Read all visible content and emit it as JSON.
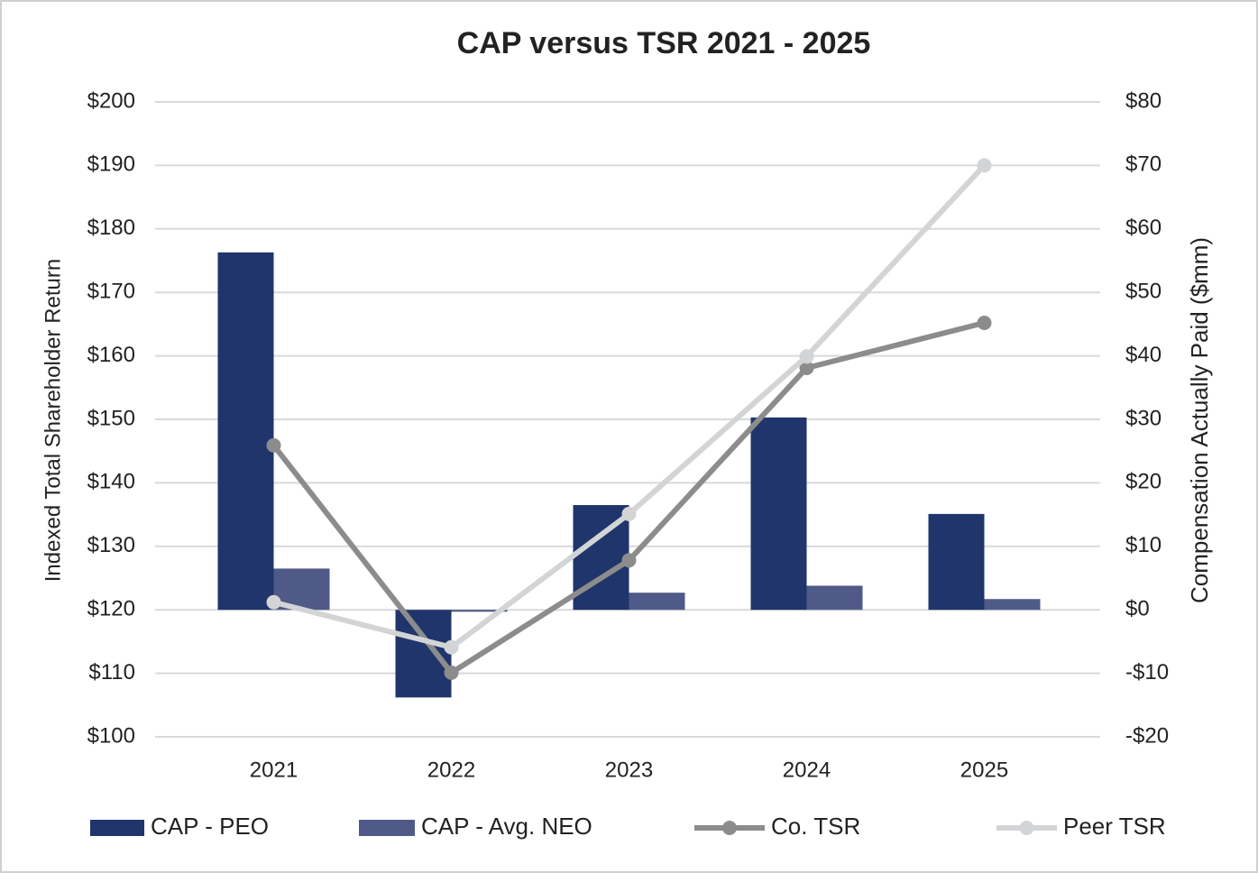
{
  "chart_data": {
    "type": "combo",
    "title": "CAP versus TSR 2021 - 2025",
    "y_label": "Indexed Total Shareholder Return",
    "y2_label": "Compensation Actually Paid ($mm)",
    "categories": [
      "2021",
      "2022",
      "2023",
      "2024",
      "2025"
    ],
    "series": [
      {
        "name": "CAP - PEO",
        "type": "bar",
        "axis": "y2",
        "color": "#1f356b",
        "values": [
          56.3,
          -13.8,
          16.5,
          30.3,
          15.1
        ]
      },
      {
        "name": "CAP - Avg. NEO",
        "type": "bar",
        "axis": "y2",
        "color": "#4f5a88",
        "values": [
          6.5,
          -0.3,
          2.7,
          3.8,
          1.7
        ]
      },
      {
        "name": "Co. TSR",
        "type": "line",
        "axis": "y",
        "color": "#8c8c8c",
        "values": [
          145.9,
          110.1,
          127.8,
          158.1,
          165.2
        ]
      },
      {
        "name": "Peer TSR",
        "type": "line",
        "axis": "y",
        "color": "#d3d4d6",
        "values": [
          121.2,
          114.1,
          135.1,
          159.9,
          190
        ]
      }
    ],
    "ylim": [
      100,
      200
    ],
    "yticks": [
      {
        "value": 100,
        "label": "$100"
      },
      {
        "value": 110,
        "label": "$110"
      },
      {
        "value": 120,
        "label": "$120"
      },
      {
        "value": 130,
        "label": "$130"
      },
      {
        "value": 140,
        "label": "$140"
      },
      {
        "value": 150,
        "label": "$150"
      },
      {
        "value": 160,
        "label": "$160"
      },
      {
        "value": 170,
        "label": "$170"
      },
      {
        "value": 180,
        "label": "$180"
      },
      {
        "value": 190,
        "label": "$190"
      },
      {
        "value": 200,
        "label": "$200"
      }
    ],
    "y2lim": [
      -20,
      80
    ],
    "y2ticks": [
      {
        "value": -20,
        "label": "-$20"
      },
      {
        "value": -10,
        "label": "-$10"
      },
      {
        "value": 0,
        "label": "$0"
      },
      {
        "value": 10,
        "label": "$10"
      },
      {
        "value": 20,
        "label": "$20"
      },
      {
        "value": 30,
        "label": "$30"
      },
      {
        "value": 40,
        "label": "$40"
      },
      {
        "value": 50,
        "label": "$50"
      },
      {
        "value": 60,
        "label": "$60"
      },
      {
        "value": 70,
        "label": "$70"
      },
      {
        "value": 80,
        "label": "$80"
      }
    ],
    "grid": true,
    "legend": "bottom"
  }
}
